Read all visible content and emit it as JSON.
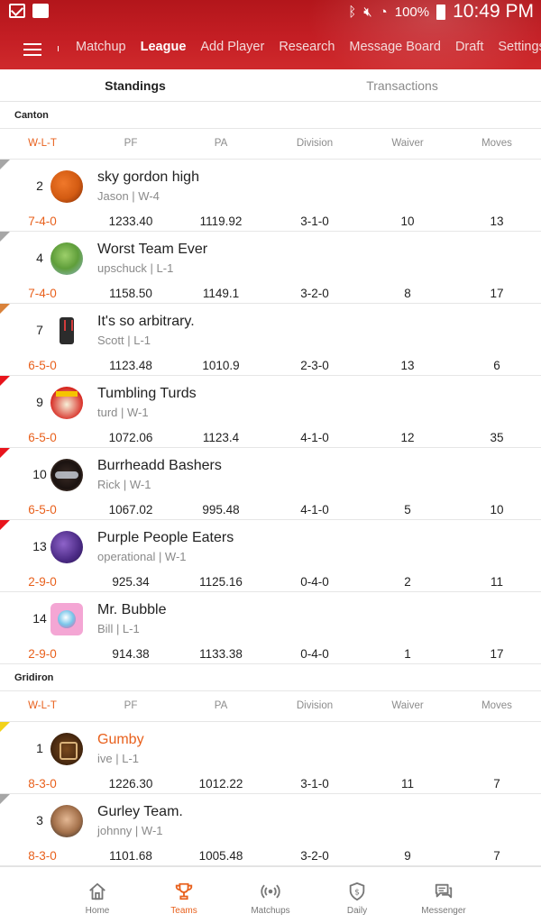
{
  "status_bar": {
    "battery": "100%",
    "time": "10:49 PM"
  },
  "nav": {
    "separator": "ı",
    "items": [
      {
        "label": "Matchup",
        "active": false
      },
      {
        "label": "League",
        "active": true
      },
      {
        "label": "Add Player",
        "active": false
      },
      {
        "label": "Research",
        "active": false
      },
      {
        "label": "Message Board",
        "active": false
      },
      {
        "label": "Draft",
        "active": false
      },
      {
        "label": "Settings",
        "active": false
      }
    ]
  },
  "tabs": {
    "standings": "Standings",
    "transactions": "Transactions"
  },
  "columns": {
    "wlt": "W-L-T",
    "pf": "PF",
    "pa": "PA",
    "division": "Division",
    "waiver": "Waiver",
    "moves": "Moves"
  },
  "divisions": [
    {
      "name": "Canton",
      "teams": [
        {
          "rank": "2",
          "name": "sky gordon high",
          "meta": "Jason | W-4",
          "wlt": "7-4-0",
          "pf": "1233.40",
          "pa": "1119.92",
          "division": "3-1-0",
          "waiver": "10",
          "moves": "13",
          "marker": "gray",
          "avatar": "orange-helmet-icon"
        },
        {
          "rank": "4",
          "name": "Worst Team Ever",
          "meta": "upschuck | L-1",
          "wlt": "7-4-0",
          "pf": "1158.50",
          "pa": "1149.1",
          "division": "3-2-0",
          "waiver": "8",
          "moves": "17",
          "marker": "gray",
          "avatar": "frog-avatar-icon"
        },
        {
          "rank": "7",
          "name": "It's so arbitrary.",
          "meta": "Scott | L-1",
          "wlt": "6-5-0",
          "pf": "1123.48",
          "pa": "1010.9",
          "division": "2-3-0",
          "waiver": "13",
          "moves": "6",
          "marker": "orange",
          "avatar": "vest-avatar-icon"
        },
        {
          "rank": "9",
          "name": "Tumbling Turds",
          "meta": "turd | W-1",
          "wlt": "6-5-0",
          "pf": "1072.06",
          "pa": "1123.4",
          "division": "4-1-0",
          "waiver": "12",
          "moves": "35",
          "marker": "red",
          "avatar": "turds-logo-icon"
        },
        {
          "rank": "10",
          "name": "Burrheadd Bashers",
          "meta": "Rick | W-1",
          "wlt": "6-5-0",
          "pf": "1067.02",
          "pa": "995.48",
          "division": "4-1-0",
          "waiver": "5",
          "moves": "10",
          "marker": "red",
          "avatar": "mask-avatar-icon"
        },
        {
          "rank": "13",
          "name": "Purple People Eaters",
          "meta": "operational | W-1",
          "wlt": "2-9-0",
          "pf": "925.34",
          "pa": "1125.16",
          "division": "0-4-0",
          "waiver": "2",
          "moves": "11",
          "marker": "red",
          "avatar": "purple-helmet-icon"
        },
        {
          "rank": "14",
          "name": "Mr. Bubble",
          "meta": "Bill | L-1",
          "wlt": "2-9-0",
          "pf": "914.38",
          "pa": "1133.38",
          "division": "0-4-0",
          "waiver": "1",
          "moves": "17",
          "marker": "none",
          "avatar": "bubble-avatar-icon"
        }
      ]
    },
    {
      "name": "Gridiron",
      "teams": [
        {
          "rank": "1",
          "name": "Gumby",
          "meta": "ive | L-1",
          "wlt": "8-3-0",
          "pf": "1226.30",
          "pa": "1012.22",
          "division": "3-1-0",
          "waiver": "11",
          "moves": "7",
          "marker": "yellow",
          "avatar": "gumby-logo-icon",
          "highlight": true
        },
        {
          "rank": "3",
          "name": "Gurley Team.",
          "meta": "johnny | W-1",
          "wlt": "8-3-0",
          "pf": "1101.68",
          "pa": "1005.48",
          "division": "3-2-0",
          "waiver": "9",
          "moves": "7",
          "marker": "gray",
          "avatar": "gurley-avatar-icon"
        }
      ]
    }
  ],
  "bottom_nav": [
    {
      "label": "Home",
      "icon": "home-icon",
      "active": false
    },
    {
      "label": "Teams",
      "icon": "trophy-icon",
      "active": true
    },
    {
      "label": "Matchups",
      "icon": "broadcast-icon",
      "active": false
    },
    {
      "label": "Daily",
      "icon": "shield-dollar-icon",
      "active": false
    },
    {
      "label": "Messenger",
      "icon": "chat-icon",
      "active": false
    }
  ],
  "colors": {
    "header_red": "#c41e24",
    "accent_orange": "#e8601c",
    "marker_gray": "#a6a6a6",
    "marker_orange": "#d9823a",
    "marker_red": "#e8141c",
    "marker_yellow": "#f2d21a"
  }
}
